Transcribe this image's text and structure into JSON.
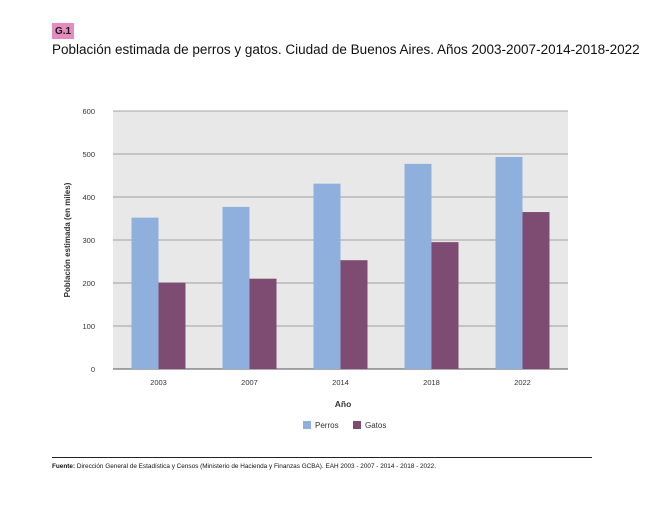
{
  "figure": {
    "badge": "G.1",
    "title": "Población estimada de perros y gatos. Ciudad de Buenos Aires. Años 2003-2007-2014-2018-2022",
    "source_label": "Fuente:",
    "source_text": " Dirección General de Estadística y Censos (Ministerio de Hacienda y Finanzas GCBA). EAH 2003 - 2007 - 2014 - 2018 - 2022."
  },
  "chart_data": {
    "type": "bar",
    "categories": [
      "2003",
      "2007",
      "2014",
      "2018",
      "2022"
    ],
    "series": [
      {
        "name": "Perros",
        "values": [
          352,
          377,
          431,
          477,
          493
        ],
        "color": "#8fb0dc"
      },
      {
        "name": "Gatos",
        "values": [
          201,
          210,
          253,
          295,
          365
        ],
        "color": "#7e4b72"
      }
    ],
    "xlabel": "Año",
    "ylabel": "Población estimada (en miles)",
    "ylim": [
      0,
      600
    ],
    "yticks": [
      "0",
      "100",
      "200",
      "300",
      "400",
      "500",
      "600"
    ],
    "grid": true,
    "plot_background": "#e8e8e8",
    "legend_position": "bottom-center"
  }
}
